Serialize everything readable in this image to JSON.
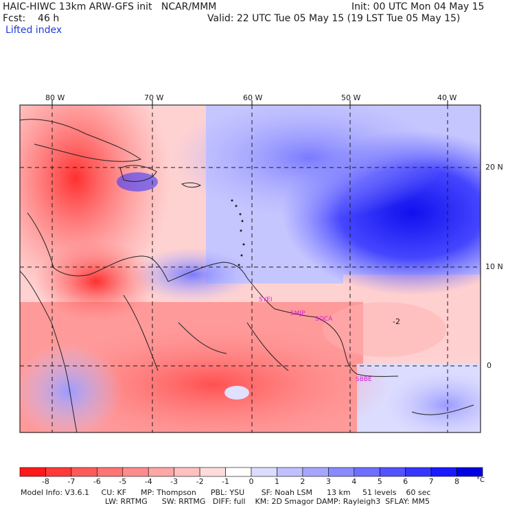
{
  "header": {
    "model_line": "HAIC-HIWC 13km ARW-GFS init   NCAR/MMM",
    "fcst_line": "Fcst:    46 h",
    "field_name": "Lifted index",
    "init_line": "Init: 00 UTC Mon 04 May 15",
    "valid_line": "Valid: 22 UTC Tue 05 May 15 (19 LST Tue 05 May 15)"
  },
  "map": {
    "lon_labels": [
      "80 W",
      "70 W",
      "60 W",
      "50 W",
      "40 W"
    ],
    "lat_labels": [
      "20 N",
      "10 N",
      "0"
    ],
    "contour_label": "-2",
    "station_labels": [
      "SYEI",
      "SMJP",
      "SOCA",
      "SBBE"
    ]
  },
  "colorbar": {
    "labels": [
      "-8",
      "-7",
      "-6",
      "-5",
      "-4",
      "-3",
      "-2",
      "-1",
      "0",
      "1",
      "2",
      "3",
      "4",
      "5",
      "6",
      "7",
      "8"
    ],
    "unit": "°C",
    "colors": [
      "#ff1a1a",
      "#ff3a3a",
      "#ff5a5a",
      "#ff7474",
      "#ff8c8c",
      "#ffa6a6",
      "#ffc0c0",
      "#ffdcdc",
      "#ffffff",
      "#dcdcff",
      "#c0c0ff",
      "#a6a6ff",
      "#8a8aff",
      "#6e6eff",
      "#5252ff",
      "#3636ff",
      "#1a1aff",
      "#0000e0"
    ]
  },
  "footer": {
    "line1": "Model Info: V3.6.1     CU: KF      MP: Thompson      PBL: YSU       SF: Noah LSM      13 km     51 levels    60 sec",
    "line2": "LW: RRTMG      SW: RRTMG   DIFF: full    KM: 2D Smagor DAMP: Rayleigh3  SFLAY: MM5"
  }
}
